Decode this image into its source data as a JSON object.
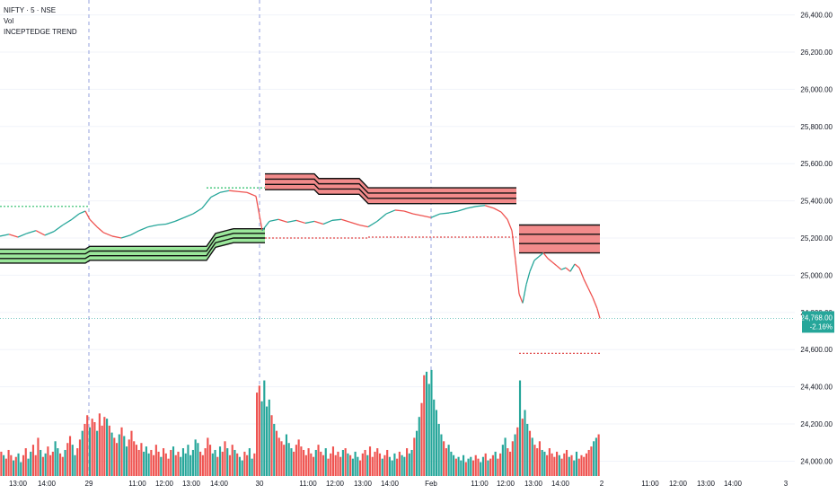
{
  "header": {
    "symbol_line": "NIFTY · 5 · NSE",
    "indicator_1": "Vol",
    "indicator_2": "INCEPTEDGE TREND"
  },
  "colors": {
    "up": "#26a69a",
    "down": "#ef5350",
    "green_band": "#9be79b",
    "red_band": "#f28b8b",
    "grid": "#f0f3fa",
    "session_line": "#7a8cd6",
    "price_line": "#26a69a"
  },
  "price_badge": {
    "price": "24,768.00",
    "change": "-2.16%"
  },
  "chart_data": {
    "type": "line",
    "title": "",
    "y_axis_ticks": [
      "26,400.00",
      "26,200.00",
      "26,000.00",
      "25,800.00",
      "25,600.00",
      "25,400.00",
      "25,200.00",
      "25,000.00",
      "24,800.00",
      "24,600.00",
      "24,400.00",
      "24,200.00",
      "24,000.00"
    ],
    "ylim": [
      23920,
      26480
    ],
    "x_axis_ticks": [
      "13:00",
      "14:00",
      "29",
      "11:00",
      "12:00",
      "13:00",
      "14:00",
      "30",
      "11:00",
      "12:00",
      "13:00",
      "14:00",
      "Feb",
      "11:00",
      "12:00",
      "13:00",
      "14:00",
      "2",
      "11:00",
      "12:00",
      "13:00",
      "14:00",
      "3"
    ],
    "session_breaks": [
      "29",
      "30",
      "Feb"
    ],
    "last_price": 24768,
    "price_series": [
      {
        "x": 0,
        "y": 25210
      },
      {
        "x": 10,
        "y": 25220
      },
      {
        "x": 20,
        "y": 25205
      },
      {
        "x": 30,
        "y": 25225
      },
      {
        "x": 40,
        "y": 25240
      },
      {
        "x": 50,
        "y": 25215
      },
      {
        "x": 60,
        "y": 25235
      },
      {
        "x": 70,
        "y": 25270
      },
      {
        "x": 80,
        "y": 25300
      },
      {
        "x": 88,
        "y": 25330
      },
      {
        "x": 95,
        "y": 25345
      },
      {
        "x": 100,
        "y": 25300
      },
      {
        "x": 108,
        "y": 25260
      },
      {
        "x": 115,
        "y": 25230
      },
      {
        "x": 125,
        "y": 25210
      },
      {
        "x": 135,
        "y": 25200
      },
      {
        "x": 145,
        "y": 25215
      },
      {
        "x": 155,
        "y": 25240
      },
      {
        "x": 165,
        "y": 25260
      },
      {
        "x": 175,
        "y": 25270
      },
      {
        "x": 185,
        "y": 25275
      },
      {
        "x": 195,
        "y": 25290
      },
      {
        "x": 205,
        "y": 25310
      },
      {
        "x": 215,
        "y": 25330
      },
      {
        "x": 225,
        "y": 25360
      },
      {
        "x": 235,
        "y": 25420
      },
      {
        "x": 245,
        "y": 25445
      },
      {
        "x": 255,
        "y": 25455
      },
      {
        "x": 265,
        "y": 25450
      },
      {
        "x": 275,
        "y": 25445
      },
      {
        "x": 285,
        "y": 25425
      },
      {
        "x": 292,
        "y": 25240
      },
      {
        "x": 300,
        "y": 25290
      },
      {
        "x": 310,
        "y": 25300
      },
      {
        "x": 320,
        "y": 25285
      },
      {
        "x": 330,
        "y": 25295
      },
      {
        "x": 340,
        "y": 25280
      },
      {
        "x": 350,
        "y": 25290
      },
      {
        "x": 360,
        "y": 25275
      },
      {
        "x": 370,
        "y": 25295
      },
      {
        "x": 380,
        "y": 25300
      },
      {
        "x": 390,
        "y": 25285
      },
      {
        "x": 400,
        "y": 25270
      },
      {
        "x": 410,
        "y": 25260
      },
      {
        "x": 420,
        "y": 25290
      },
      {
        "x": 430,
        "y": 25330
      },
      {
        "x": 440,
        "y": 25350
      },
      {
        "x": 450,
        "y": 25345
      },
      {
        "x": 460,
        "y": 25330
      },
      {
        "x": 470,
        "y": 25320
      },
      {
        "x": 480,
        "y": 25310
      },
      {
        "x": 490,
        "y": 25330
      },
      {
        "x": 500,
        "y": 25335
      },
      {
        "x": 510,
        "y": 25345
      },
      {
        "x": 520,
        "y": 25360
      },
      {
        "x": 530,
        "y": 25370
      },
      {
        "x": 540,
        "y": 25375
      },
      {
        "x": 550,
        "y": 25360
      },
      {
        "x": 558,
        "y": 25340
      },
      {
        "x": 565,
        "y": 25300
      },
      {
        "x": 570,
        "y": 25240
      },
      {
        "x": 574,
        "y": 25080
      },
      {
        "x": 578,
        "y": 24900
      },
      {
        "x": 582,
        "y": 24850
      },
      {
        "x": 586,
        "y": 24950
      },
      {
        "x": 590,
        "y": 25020
      },
      {
        "x": 595,
        "y": 25080
      },
      {
        "x": 600,
        "y": 25100
      },
      {
        "x": 605,
        "y": 25120
      },
      {
        "x": 610,
        "y": 25090
      },
      {
        "x": 615,
        "y": 25070
      },
      {
        "x": 620,
        "y": 25050
      },
      {
        "x": 625,
        "y": 25030
      },
      {
        "x": 630,
        "y": 25040
      },
      {
        "x": 635,
        "y": 25020
      },
      {
        "x": 640,
        "y": 25060
      },
      {
        "x": 645,
        "y": 25040
      },
      {
        "x": 650,
        "y": 24980
      },
      {
        "x": 655,
        "y": 24930
      },
      {
        "x": 660,
        "y": 24880
      },
      {
        "x": 665,
        "y": 24820
      },
      {
        "x": 668,
        "y": 24768
      }
    ],
    "trend_bands": [
      {
        "kind": "support",
        "color": "#9be79b",
        "top": [
          {
            "x": 0,
            "y": 25140
          },
          {
            "x": 95,
            "y": 25140
          },
          {
            "x": 100,
            "y": 25155
          },
          {
            "x": 230,
            "y": 25155
          },
          {
            "x": 240,
            "y": 25225
          },
          {
            "x": 260,
            "y": 25250
          },
          {
            "x": 295,
            "y": 25250
          }
        ],
        "thickness": 75
      },
      {
        "kind": "resistance",
        "color": "#f28b8b",
        "top": [
          {
            "x": 295,
            "y": 25545
          },
          {
            "x": 350,
            "y": 25545
          },
          {
            "x": 355,
            "y": 25520
          },
          {
            "x": 400,
            "y": 25520
          },
          {
            "x": 410,
            "y": 25470
          },
          {
            "x": 480,
            "y": 25470
          },
          {
            "x": 575,
            "y": 25470
          }
        ],
        "thickness": 85
      },
      {
        "kind": "resistance",
        "color": "#f28b8b",
        "top": [
          {
            "x": 578,
            "y": 25270
          },
          {
            "x": 668,
            "y": 25270
          }
        ],
        "thickness": 150
      }
    ],
    "dotted_levels": [
      {
        "color": "#2bbf6a",
        "y": 25370,
        "x0": 0,
        "x1": 100
      },
      {
        "color": "#2bbf6a",
        "y": 25470,
        "x0": 230,
        "x1": 295
      },
      {
        "color": "#e04848",
        "y": 25200,
        "x0": 295,
        "x1": 410
      },
      {
        "color": "#e04848",
        "y": 25205,
        "x0": 410,
        "x1": 575
      },
      {
        "color": "#e04848",
        "y": 24580,
        "x0": 578,
        "x1": 668
      }
    ],
    "volume_series": [
      14,
      12,
      10,
      15,
      12,
      9,
      11,
      13,
      8,
      12,
      16,
      10,
      14,
      18,
      12,
      22,
      15,
      11,
      13,
      17,
      12,
      14,
      20,
      16,
      13,
      11,
      15,
      19,
      23,
      18,
      12,
      16,
      21,
      26,
      30,
      35,
      28,
      33,
      31,
      26,
      36,
      29,
      34,
      33,
      29,
      25,
      22,
      19,
      24,
      28,
      23,
      17,
      21,
      26,
      20,
      18,
      15,
      19,
      14,
      17,
      13,
      15,
      12,
      18,
      14,
      11,
      16,
      13,
      10,
      15,
      17,
      12,
      14,
      11,
      16,
      13,
      18,
      12,
      15,
      21,
      19,
      14,
      12,
      16,
      22,
      18,
      13,
      15,
      11,
      17,
      14,
      20,
      16,
      12,
      18,
      15,
      13,
      11,
      9,
      14,
      12,
      16,
      10,
      13,
      48,
      52,
      43,
      55,
      40,
      44,
      35,
      30,
      26,
      22,
      20,
      18,
      24,
      19,
      16,
      14,
      18,
      21,
      17,
      15,
      12,
      16,
      13,
      11,
      15,
      18,
      14,
      12,
      16,
      10,
      13,
      17,
      12,
      14,
      11,
      15,
      16,
      13,
      12,
      10,
      14,
      11,
      9,
      13,
      15,
      12,
      17,
      11,
      14,
      16,
      13,
      10,
      12,
      15,
      11,
      9,
      13,
      10,
      14,
      12,
      11,
      16,
      13,
      15,
      22,
      26,
      34,
      42,
      58,
      60,
      53,
      61,
      44,
      38,
      30,
      24,
      20,
      16,
      18,
      14,
      12,
      10,
      11,
      9,
      12,
      8,
      10,
      11,
      9,
      12,
      10,
      8,
      11,
      13,
      9,
      10,
      12,
      14,
      10,
      13,
      18,
      22,
      16,
      14,
      20,
      24,
      28,
      55,
      33,
      38,
      30,
      26,
      22,
      18,
      16,
      20,
      15,
      14,
      12,
      16,
      13,
      11,
      14,
      12,
      10,
      13,
      15,
      11,
      12,
      9,
      14,
      10,
      12,
      11,
      13,
      15,
      17,
      20,
      22,
      24
    ],
    "volume_colors_seed": 7
  }
}
